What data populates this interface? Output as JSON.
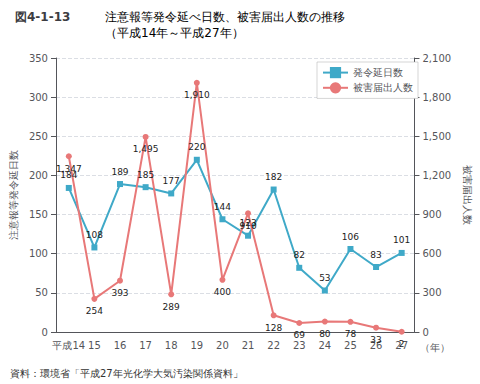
{
  "chart_data": {
    "type": "line",
    "title": "注意報等発令延べ日数、被害届出人数の推移",
    "subtitle": "（平成14年～平成27年）",
    "annotations": [
      "図4-1-13",
      "資料：環境省「平成27年光化学大気汚染関係資料」"
    ],
    "x_label": "（年）",
    "y_label": "注意報等発令延日数",
    "y2_label": "被害届出人数",
    "categories": [
      "平成14",
      "15",
      "16",
      "17",
      "18",
      "19",
      "20",
      "21",
      "22",
      "23",
      "24",
      "25",
      "26",
      "27"
    ],
    "series": [
      {
        "name": "発令延日数",
        "color": "#3fa9c8",
        "marker": "square",
        "values": [
          184,
          108,
          189,
          185,
          177,
          220,
          144,
          123,
          182,
          82,
          53,
          106,
          83,
          101
        ]
      },
      {
        "name": "被害届出人数",
        "color": "#e87878",
        "marker": "circle",
        "axis": "y2",
        "values": [
          1347,
          254,
          393,
          1495,
          289,
          1910,
          400,
          910,
          128,
          69,
          80,
          78,
          33,
          2
        ],
        "value_labels": [
          "1,347",
          "254",
          "393",
          "1,495",
          "289",
          "1,910",
          "400",
          "910",
          "128",
          "69",
          "80",
          "78",
          "33",
          "2"
        ]
      }
    ],
    "ylim": [
      0,
      350
    ],
    "yticks": [
      0,
      50,
      100,
      150,
      200,
      250,
      300,
      350
    ],
    "y2lim": [
      0,
      2100
    ],
    "y2ticks": [
      0,
      300,
      600,
      900,
      1200,
      1500,
      1800,
      2100
    ],
    "grid": true,
    "legend": "upper right",
    "data_labels": true
  }
}
